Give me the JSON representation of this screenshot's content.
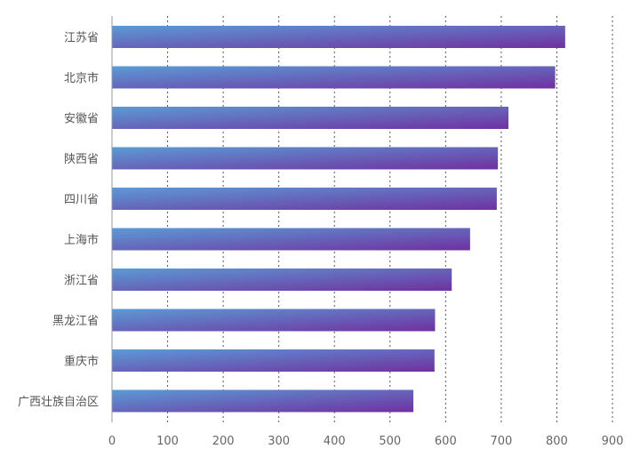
{
  "chart_data": {
    "type": "bar",
    "orientation": "horizontal",
    "title": "",
    "xlabel": "",
    "ylabel": "",
    "categories": [
      "江苏省",
      "北京市",
      "安徽省",
      "陕西省",
      "四川省",
      "上海市",
      "浙江省",
      "黑龙江省",
      "重庆市",
      "广西壮族自治区"
    ],
    "values": [
      815,
      797,
      713,
      694,
      692,
      644,
      611,
      581,
      580,
      542
    ],
    "xlim": [
      0,
      900
    ],
    "ticks": [
      "0",
      "100",
      "200",
      "300",
      "400",
      "500",
      "600",
      "700",
      "800",
      "900"
    ],
    "tick_values": [
      0,
      100,
      200,
      300,
      400,
      500,
      600,
      700,
      800,
      900
    ],
    "grid": true,
    "colors": {
      "bar_start": "#5b9bd5",
      "bar_end": "#7030a0"
    }
  }
}
